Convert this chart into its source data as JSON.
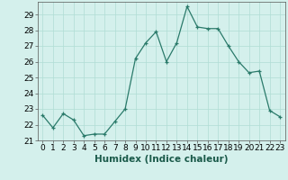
{
  "title": "",
  "xlabel": "Humidex (Indice chaleur)",
  "x": [
    0,
    1,
    2,
    3,
    4,
    5,
    6,
    7,
    8,
    9,
    10,
    11,
    12,
    13,
    14,
    15,
    16,
    17,
    18,
    19,
    20,
    21,
    22,
    23
  ],
  "y": [
    22.6,
    21.8,
    22.7,
    22.3,
    21.3,
    21.4,
    21.4,
    22.2,
    23.0,
    26.2,
    27.2,
    27.9,
    26.0,
    27.2,
    29.5,
    28.2,
    28.1,
    28.1,
    27.0,
    26.0,
    25.3,
    25.4,
    22.9,
    22.5
  ],
  "line_color": "#2a7a6a",
  "marker": "+",
  "marker_color": "#2a7a6a",
  "bg_color": "#d4f0ec",
  "grid_color": "#b0ddd4",
  "ylim": [
    21,
    29.8
  ],
  "yticks": [
    21,
    22,
    23,
    24,
    25,
    26,
    27,
    28,
    29
  ],
  "xticks": [
    0,
    1,
    2,
    3,
    4,
    5,
    6,
    7,
    8,
    9,
    10,
    11,
    12,
    13,
    14,
    15,
    16,
    17,
    18,
    19,
    20,
    21,
    22,
    23
  ],
  "xlabel_fontsize": 7.5,
  "tick_fontsize": 6.5
}
